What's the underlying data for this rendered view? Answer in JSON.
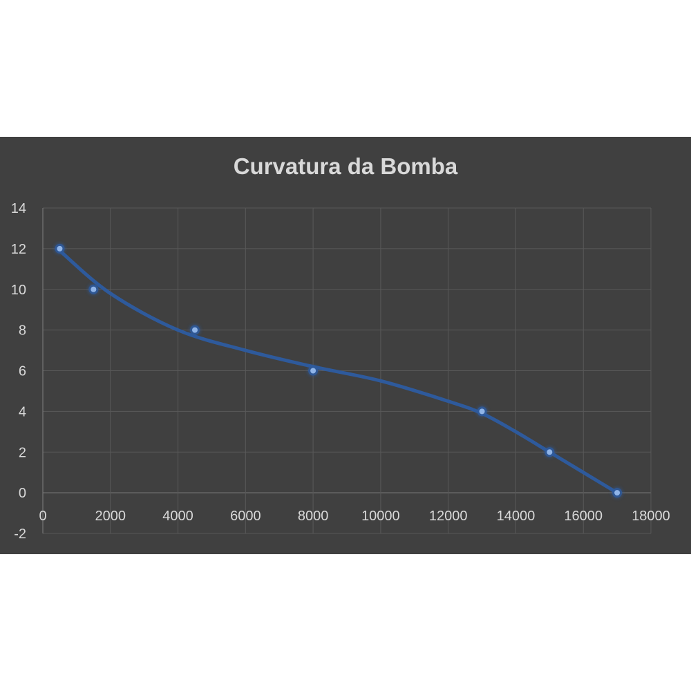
{
  "chart_data": {
    "type": "scatter",
    "title": "Curvatura da Bomba",
    "xlabel": "",
    "ylabel": "",
    "xlim": [
      0,
      18000
    ],
    "ylim": [
      -2,
      14
    ],
    "x_ticks": [
      0,
      2000,
      4000,
      6000,
      8000,
      10000,
      12000,
      14000,
      16000,
      18000
    ],
    "y_ticks": [
      -2,
      0,
      2,
      4,
      6,
      8,
      10,
      12,
      14
    ],
    "grid": true,
    "legend": "none",
    "smooth_line": true,
    "series": [
      {
        "x": [
          500,
          1500,
          4500,
          8000,
          13000,
          15000,
          17000
        ],
        "y": [
          12,
          10,
          8,
          6,
          4,
          2,
          0
        ]
      }
    ],
    "trendline": {
      "type": "polynomial",
      "x": [
        500,
        2000,
        4000,
        6000,
        8000,
        10000,
        12000,
        13000,
        14000,
        15000,
        16000,
        17000
      ],
      "y": [
        11.9,
        9.8,
        8.0,
        7.0,
        6.2,
        5.5,
        4.5,
        3.9,
        3.0,
        2.0,
        1.0,
        0.0
      ]
    },
    "colors": {
      "background": "#404040",
      "grid": "#595959",
      "text": "#d9d9d9",
      "line": "#2e5a9c",
      "marker": "#8fb4e8"
    }
  }
}
